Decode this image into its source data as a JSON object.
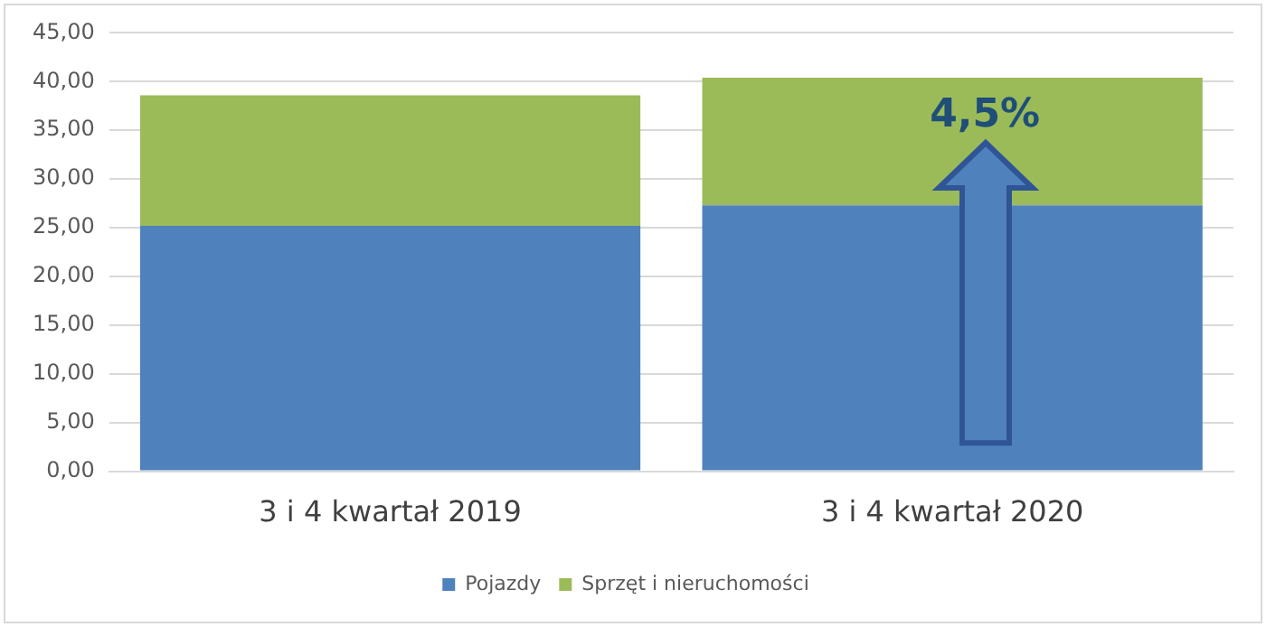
{
  "chart_data": {
    "type": "bar",
    "stacked": true,
    "categories": [
      "3 i 4 kwartał 2019",
      "3 i 4 kwartał 2020"
    ],
    "series": [
      {
        "name": "Pojazdy",
        "color": "#4f81bd",
        "values": [
          25.2,
          27.3
        ]
      },
      {
        "name": "Sprzęt i nieruchomości",
        "color": "#9bbb59",
        "values": [
          13.4,
          13.1
        ]
      }
    ],
    "ylim": [
      0,
      45
    ],
    "yticks": [
      {
        "value": 0,
        "label": "0,00"
      },
      {
        "value": 5,
        "label": "5,00"
      },
      {
        "value": 10,
        "label": "10,00"
      },
      {
        "value": 15,
        "label": "15,00"
      },
      {
        "value": 20,
        "label": "20,00"
      },
      {
        "value": 25,
        "label": "25,00"
      },
      {
        "value": 30,
        "label": "30,00"
      },
      {
        "value": 35,
        "label": "35,00"
      },
      {
        "value": 40,
        "label": "40,00"
      },
      {
        "value": 45,
        "label": "45,00"
      }
    ],
    "grid": "y",
    "legend": "bottom",
    "annotations": [
      "4,5%"
    ]
  }
}
